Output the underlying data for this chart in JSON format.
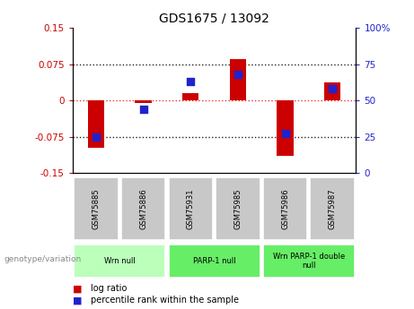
{
  "title": "GDS1675 / 13092",
  "samples": [
    "GSM75885",
    "GSM75886",
    "GSM75931",
    "GSM75985",
    "GSM75986",
    "GSM75987"
  ],
  "log_ratio": [
    -0.098,
    -0.005,
    0.015,
    0.085,
    -0.115,
    0.038
  ],
  "percentile_rank": [
    25,
    44,
    63,
    68,
    27,
    58
  ],
  "ylim_left": [
    -0.15,
    0.15
  ],
  "ylim_right": [
    0,
    100
  ],
  "yticks_left": [
    -0.15,
    -0.075,
    0,
    0.075,
    0.15
  ],
  "yticks_right": [
    0,
    25,
    50,
    75,
    100
  ],
  "dotted_lines": [
    -0.075,
    0.0,
    0.075
  ],
  "groups": [
    {
      "label": "Wrn null",
      "start": 0,
      "end": 2,
      "color": "#bbffbb"
    },
    {
      "label": "PARP-1 null",
      "start": 2,
      "end": 4,
      "color": "#66ee66"
    },
    {
      "label": "Wrn PARP-1 double\nnull",
      "start": 4,
      "end": 6,
      "color": "#66ee66"
    }
  ],
  "bar_color": "#cc0000",
  "dot_color": "#2222cc",
  "bar_width": 0.35,
  "dot_size": 40,
  "left_axis_color": "#cc0000",
  "right_axis_color": "#2222cc",
  "bg_color": "#ffffff",
  "sample_box_color": "#c8c8c8",
  "zero_line_color": "#ee3333",
  "grid_line_color": "#222222",
  "legend_red_label": "log ratio",
  "legend_blue_label": "percentile rank within the sample",
  "genotype_label": "genotype/variation"
}
